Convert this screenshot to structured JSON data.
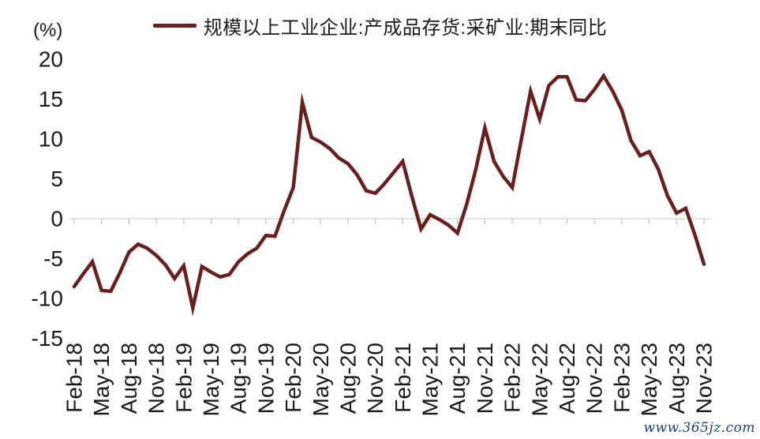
{
  "y_axis": {
    "unit_label": "(%)"
  },
  "legend": {
    "label": "规模以上工业企业:产成品存货:采矿业:期末同比"
  },
  "watermark": {
    "text": "www.365jz.com"
  },
  "colors": {
    "line": "#6a1f1f",
    "grid": "#d9d9d9",
    "tick": "#c0c0c0",
    "text": "#1a1a1a",
    "watermark": "#1c3f7e"
  },
  "chart_data": {
    "type": "line",
    "title": "",
    "legend_entries": [
      "规模以上工业企业:产成品存货:采矿业:期末同比"
    ],
    "legend_position": "top-center",
    "unit": "%",
    "ylabel": "(%)",
    "xlabel": "",
    "ylim": [
      -15,
      20
    ],
    "y_ticks": [
      20,
      15,
      10,
      5,
      0,
      -5,
      -10,
      -15
    ],
    "grid": "single horizontal line at y=0 with small ticks, x labels at bottom rotated 90deg",
    "x_tick_interval": 3,
    "months": [
      "Feb-18",
      "Mar-18",
      "Apr-18",
      "May-18",
      "Jun-18",
      "Jul-18",
      "Aug-18",
      "Sep-18",
      "Oct-18",
      "Nov-18",
      "Dec-18",
      "Jan-19",
      "Feb-19",
      "Mar-19",
      "Apr-19",
      "May-19",
      "Jun-19",
      "Jul-19",
      "Aug-19",
      "Sep-19",
      "Oct-19",
      "Nov-19",
      "Dec-19",
      "Jan-20",
      "Feb-20",
      "Mar-20",
      "Apr-20",
      "May-20",
      "Jun-20",
      "Jul-20",
      "Aug-20",
      "Sep-20",
      "Oct-20",
      "Nov-20",
      "Dec-20",
      "Jan-21",
      "Feb-21",
      "Mar-21",
      "Apr-21",
      "May-21",
      "Jun-21",
      "Jul-21",
      "Aug-21",
      "Sep-21",
      "Oct-21",
      "Nov-21",
      "Dec-21",
      "Jan-22",
      "Feb-22",
      "Mar-22",
      "Apr-22",
      "May-22",
      "Jun-22",
      "Jul-22",
      "Aug-22",
      "Sep-22",
      "Oct-22",
      "Nov-22",
      "Dec-22",
      "Jan-23",
      "Feb-23",
      "Mar-23",
      "Apr-23",
      "May-23",
      "Jun-23",
      "Jul-23",
      "Aug-23",
      "Sep-23",
      "Oct-23",
      "Nov-23"
    ],
    "series": [
      {
        "name": "规模以上工业企业:产成品存货:采矿业:期末同比",
        "values": [
          -8.5,
          -6.9,
          -5.4,
          -9.0,
          -9.1,
          -6.8,
          -4.2,
          -3.2,
          -3.7,
          -4.6,
          -5.8,
          -7.5,
          -5.9,
          -11.2,
          -6.0,
          -6.7,
          -7.3,
          -7.0,
          -5.4,
          -4.4,
          -3.7,
          -2.1,
          -2.2,
          1.0,
          3.9,
          14.6,
          10.2,
          9.6,
          8.8,
          7.6,
          6.9,
          5.5,
          3.5,
          3.2,
          4.4,
          5.8,
          7.2,
          2.8,
          -1.3,
          0.5,
          -0.1,
          -0.8,
          -1.8,
          1.8,
          6.2,
          11.4,
          7.2,
          5.3,
          3.9,
          10.0,
          16.0,
          12.5,
          16.7,
          17.8,
          17.8,
          14.9,
          14.8,
          16.2,
          17.9,
          16.0,
          13.6,
          9.8,
          7.9,
          8.4,
          6.2,
          2.9,
          0.7,
          1.3,
          -2.0,
          -5.7
        ]
      }
    ]
  }
}
